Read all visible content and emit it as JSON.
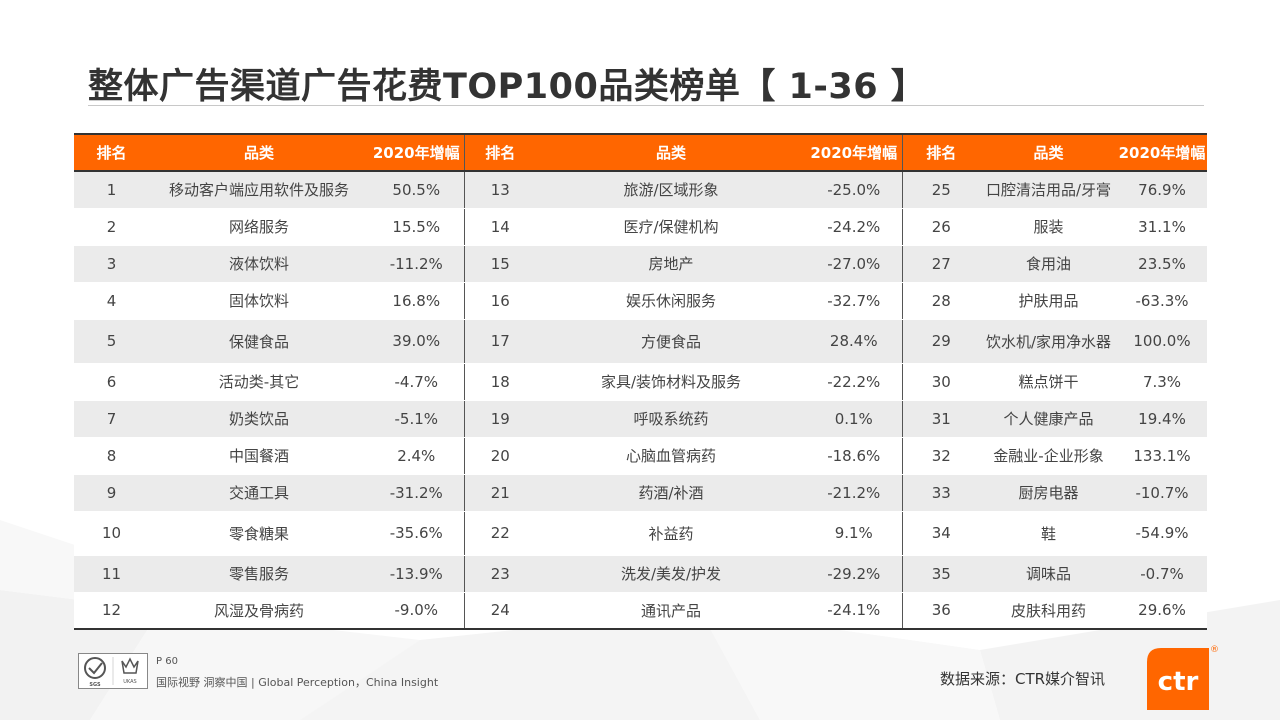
{
  "title": "整体广告渠道广告花费TOP100品类榜单【 1-36 】",
  "table": {
    "headers": [
      "排名",
      "品类",
      "2020年增幅",
      "排名",
      "品类",
      "2020年增幅",
      "排名",
      "品类",
      "2020年增幅"
    ],
    "rows": [
      [
        "1",
        "移动客户端应用软件及服务",
        "50.5%",
        "13",
        "旅游/区域形象",
        "-25.0%",
        "25",
        "口腔清洁用品/牙膏",
        "76.9%"
      ],
      [
        "2",
        "网络服务",
        "15.5%",
        "14",
        "医疗/保健机构",
        "-24.2%",
        "26",
        "服装",
        "31.1%"
      ],
      [
        "3",
        "液体饮料",
        "-11.2%",
        "15",
        "房地产",
        "-27.0%",
        "27",
        "食用油",
        "23.5%"
      ],
      [
        "4",
        "固体饮料",
        "16.8%",
        "16",
        "娱乐休闲服务",
        "-32.7%",
        "28",
        "护肤用品",
        "-63.3%"
      ],
      [
        "5",
        "保健食品",
        "39.0%",
        "17",
        "方便食品",
        "28.4%",
        "29",
        "饮水机/家用净水器",
        "100.0%"
      ],
      [
        "6",
        "活动类-其它",
        "-4.7%",
        "18",
        "家具/装饰材料及服务",
        "-22.2%",
        "30",
        "糕点饼干",
        "7.3%"
      ],
      [
        "7",
        "奶类饮品",
        "-5.1%",
        "19",
        "呼吸系统药",
        "0.1%",
        "31",
        "个人健康产品",
        "19.4%"
      ],
      [
        "8",
        "中国餐酒",
        "2.4%",
        "20",
        "心脑血管病药",
        "-18.6%",
        "32",
        "金融业-企业形象",
        "133.1%"
      ],
      [
        "9",
        "交通工具",
        "-31.2%",
        "21",
        "药酒/补酒",
        "-21.2%",
        "33",
        "厨房电器",
        "-10.7%"
      ],
      [
        "10",
        "零食糖果",
        "-35.6%",
        "22",
        "补益药",
        "9.1%",
        "34",
        "鞋",
        "-54.9%"
      ],
      [
        "11",
        "零售服务",
        "-13.9%",
        "23",
        "洗发/美发/护发",
        "-29.2%",
        "35",
        "调味品",
        "-0.7%"
      ],
      [
        "12",
        "风湿及骨病药",
        "-9.0%",
        "24",
        "通讯产品",
        "-24.1%",
        "36",
        "皮肤科用药",
        "29.6%"
      ]
    ]
  },
  "footer": {
    "page": "P 60",
    "slogan": "国际视野  洞察中国 |  Global Perception，China Insight",
    "source": "数据来源：CTR媒介智讯",
    "logo_text": "ctr",
    "logo_mark": "®",
    "cert_text_1": "SGS",
    "cert_text_2": "UKAS"
  },
  "colors": {
    "accent": "#ff6600",
    "header_text": "#ffffff",
    "stripe": "#ebebeb"
  }
}
